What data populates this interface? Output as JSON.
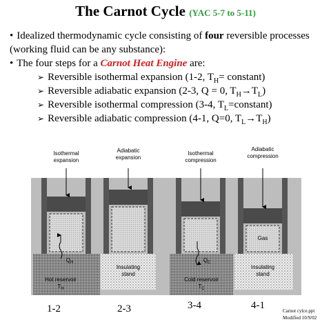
{
  "title": "The Carnot Cycle",
  "title_ref": "(YAC 5-7 to 5-11)",
  "bullets": [
    {
      "parts": [
        "Idealized thermodynamic cycle consisting of ",
        "four",
        " reversible processes (working fluid can be any substance):"
      ]
    },
    {
      "parts": [
        "The four steps for a ",
        "Carnot Heat Engine",
        " are:"
      ]
    }
  ],
  "steps": [
    {
      "parts": [
        "Reversible isothermal expansion (1-2, T",
        "H",
        "= constant)"
      ]
    },
    {
      "parts": [
        "Reversible adiabatic expansion (2-3, Q = 0, T",
        "H",
        "→T",
        "L",
        ")"
      ]
    },
    {
      "parts": [
        "Reversible isothermal compression (3-4, T",
        "L",
        "=constant)"
      ]
    },
    {
      "parts": [
        "Reversible adiabatic compression (4-1, Q=0, T",
        "L",
        "→T",
        "H",
        ")"
      ]
    }
  ],
  "diagram": {
    "labels": [
      [
        "Isothermal",
        "expansion"
      ],
      [
        "Adiabatic",
        "expansion"
      ],
      [
        "Isothermal",
        "compression"
      ],
      [
        "Adiabatic",
        "compression"
      ]
    ],
    "hot_heat": [
      "Q",
      "H"
    ],
    "hot_reservoir": [
      "Hot reservoir",
      "T",
      "H"
    ],
    "cold_heat": [
      "Q",
      "C"
    ],
    "cold_reservoir": [
      "Cold reservoir",
      "T",
      "C"
    ],
    "stand": [
      "Insulating",
      "stand"
    ],
    "gas": "Gas",
    "steps": [
      "1-2",
      "2-3",
      "3-4",
      "4-1"
    ]
  },
  "footnote": [
    "Carnot cylce.ppt",
    "Modified 10/9/02"
  ]
}
